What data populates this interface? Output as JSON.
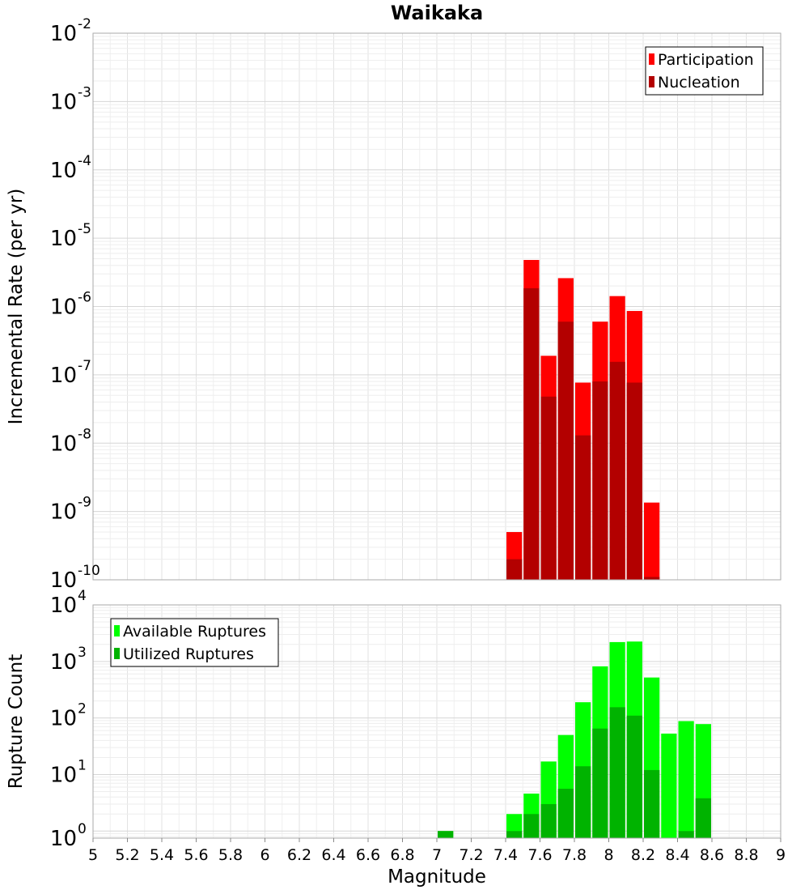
{
  "chart_data": [
    {
      "type": "bar",
      "title": "Waikaka",
      "xlabel": "",
      "ylabel": "Incremental Rate (per yr)",
      "xlim": [
        5,
        9
      ],
      "ylim": [
        1e-10,
        0.01
      ],
      "yscale": "log",
      "grid": true,
      "legend_position": "top-right",
      "bin_width": 0.1,
      "y_tick_labels": [
        {
          "base": "10",
          "exp": "-10"
        },
        {
          "base": "10",
          "exp": "-9"
        },
        {
          "base": "10",
          "exp": "-8"
        },
        {
          "base": "10",
          "exp": "-7"
        },
        {
          "base": "10",
          "exp": "-6"
        },
        {
          "base": "10",
          "exp": "-5"
        },
        {
          "base": "10",
          "exp": "-4"
        },
        {
          "base": "10",
          "exp": "-3"
        },
        {
          "base": "10",
          "exp": "-2"
        }
      ],
      "series": [
        {
          "name": "Participation",
          "color": "#ff0000",
          "x": [
            7.45,
            7.55,
            7.65,
            7.75,
            7.85,
            7.95,
            8.05,
            8.15,
            8.25
          ],
          "values": [
            5e-10,
            4.8e-06,
            1.9e-07,
            2.6e-06,
            7.7e-08,
            6e-07,
            1.42e-06,
            8.6e-07,
            1.35e-09
          ]
        },
        {
          "name": "Nucleation",
          "color": "#b30000",
          "x": [
            7.45,
            7.55,
            7.65,
            7.75,
            7.85,
            7.95,
            8.05,
            8.15,
            8.25
          ],
          "values": [
            2e-10,
            1.85e-06,
            4.8e-08,
            6e-07,
            1.3e-08,
            8e-08,
            1.55e-07,
            7.7e-08,
            1.1e-10
          ]
        }
      ]
    },
    {
      "type": "bar",
      "title": "",
      "xlabel": "Magnitude",
      "ylabel": "Rupture Count",
      "xlim": [
        5,
        9
      ],
      "ylim": [
        0.75,
        10000
      ],
      "yscale": "log",
      "grid": true,
      "legend_position": "top-left",
      "bin_width": 0.1,
      "x_tick_labels": [
        "5",
        "5.2",
        "5.4",
        "5.6",
        "5.8",
        "6",
        "6.2",
        "6.4",
        "6.6",
        "6.8",
        "7",
        "7.2",
        "7.4",
        "7.6",
        "7.8",
        "8",
        "8.2",
        "8.4",
        "8.6",
        "8.8",
        "9"
      ],
      "y_tick_labels": [
        {
          "base": "10",
          "exp": "0"
        },
        {
          "base": "10",
          "exp": "1"
        },
        {
          "base": "10",
          "exp": "2"
        },
        {
          "base": "10",
          "exp": "3"
        },
        {
          "base": "10",
          "exp": "4"
        }
      ],
      "series": [
        {
          "name": "Available Ruptures",
          "color": "#00ff00",
          "x": [
            7.05,
            7.45,
            7.55,
            7.65,
            7.75,
            7.85,
            7.95,
            8.05,
            8.15,
            8.25,
            8.35,
            8.45,
            8.55
          ],
          "values": [
            1,
            2,
            4.6,
            17,
            50,
            190,
            820,
            2200,
            2250,
            520,
            53,
            88,
            78
          ]
        },
        {
          "name": "Utilized Ruptures",
          "color": "#00b300",
          "x": [
            7.05,
            7.45,
            7.55,
            7.65,
            7.75,
            7.85,
            7.95,
            8.05,
            8.15,
            8.25,
            8.45,
            8.55
          ],
          "values": [
            1,
            1,
            2,
            3,
            5.6,
            14,
            65,
            155,
            110,
            12,
            1,
            3.8
          ]
        }
      ]
    }
  ]
}
